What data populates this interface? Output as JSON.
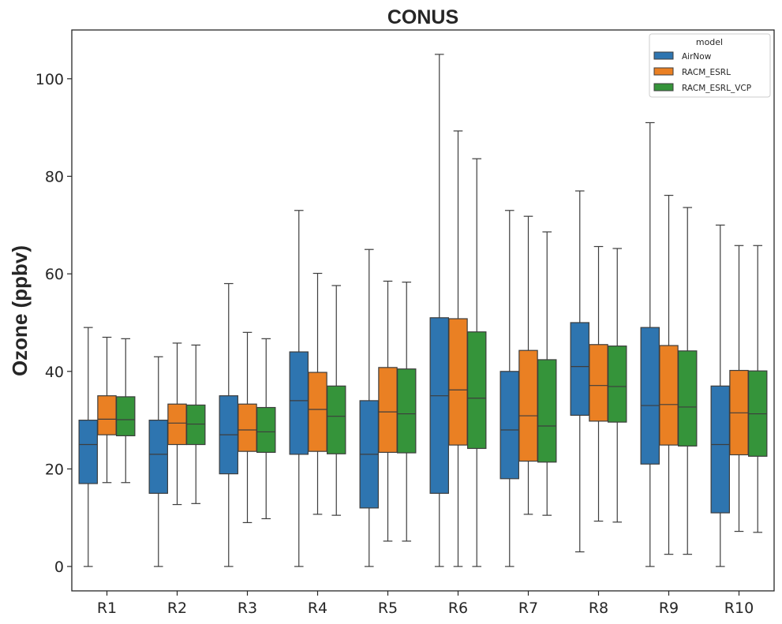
{
  "chart_data": {
    "type": "boxplot",
    "title": "CONUS",
    "xlabel": "",
    "ylabel": "Ozone (ppbv)",
    "ylim": [
      -5,
      110
    ],
    "yticks": [
      0,
      20,
      40,
      60,
      80,
      100
    ],
    "grid": false,
    "legend": {
      "title": "model",
      "placement": "top-right"
    },
    "categories": [
      "R1",
      "R2",
      "R3",
      "R4",
      "R5",
      "R6",
      "R7",
      "R8",
      "R9",
      "R10"
    ],
    "series": [
      {
        "name": "AirNow",
        "color": "#2e75b0",
        "boxes": [
          {
            "whislo": 0,
            "q1": 17,
            "med": 25,
            "q3": 30,
            "whishi": 49
          },
          {
            "whislo": 0,
            "q1": 15,
            "med": 23,
            "q3": 30,
            "whishi": 43
          },
          {
            "whislo": 0,
            "q1": 19,
            "med": 27,
            "q3": 35,
            "whishi": 58
          },
          {
            "whislo": 0,
            "q1": 23,
            "med": 34,
            "q3": 44,
            "whishi": 73
          },
          {
            "whislo": 0,
            "q1": 12,
            "med": 23,
            "q3": 34,
            "whishi": 65
          },
          {
            "whislo": 0,
            "q1": 15,
            "med": 35,
            "q3": 51,
            "whishi": 105
          },
          {
            "whislo": 0,
            "q1": 18,
            "med": 28,
            "q3": 40,
            "whishi": 73
          },
          {
            "whislo": 3,
            "q1": 31,
            "med": 41,
            "q3": 50,
            "whishi": 77
          },
          {
            "whislo": 0,
            "q1": 21,
            "med": 33,
            "q3": 49,
            "whishi": 91
          },
          {
            "whislo": 0,
            "q1": 11,
            "med": 25,
            "q3": 37,
            "whishi": 70
          }
        ]
      },
      {
        "name": "RACM_ESRL",
        "color": "#ea8023",
        "boxes": [
          {
            "whislo": 17.2,
            "q1": 27,
            "med": 30.2,
            "q3": 35,
            "whishi": 47
          },
          {
            "whislo": 12.7,
            "q1": 25,
            "med": 29.4,
            "q3": 33.3,
            "whishi": 45.8
          },
          {
            "whislo": 9,
            "q1": 23.6,
            "med": 28,
            "q3": 33.3,
            "whishi": 48
          },
          {
            "whislo": 10.7,
            "q1": 23.6,
            "med": 32.2,
            "q3": 39.8,
            "whishi": 60.1
          },
          {
            "whislo": 5.2,
            "q1": 23.4,
            "med": 31.7,
            "q3": 40.8,
            "whishi": 58.5
          },
          {
            "whislo": 0,
            "q1": 24.9,
            "med": 36.2,
            "q3": 50.8,
            "whishi": 89.3
          },
          {
            "whislo": 10.7,
            "q1": 21.6,
            "med": 30.9,
            "q3": 44.3,
            "whishi": 71.8
          },
          {
            "whislo": 9.3,
            "q1": 29.8,
            "med": 37.1,
            "q3": 45.5,
            "whishi": 65.6
          },
          {
            "whislo": 2.5,
            "q1": 24.9,
            "med": 33.2,
            "q3": 45.3,
            "whishi": 76.1
          },
          {
            "whislo": 7.2,
            "q1": 22.9,
            "med": 31.5,
            "q3": 40.2,
            "whishi": 65.8
          }
        ]
      },
      {
        "name": "RACM_ESRL_VCP",
        "color": "#35943a",
        "boxes": [
          {
            "whislo": 17.2,
            "q1": 26.8,
            "med": 30.1,
            "q3": 34.8,
            "whishi": 46.7
          },
          {
            "whislo": 12.9,
            "q1": 25,
            "med": 29.2,
            "q3": 33.1,
            "whishi": 45.4
          },
          {
            "whislo": 9.8,
            "q1": 23.4,
            "med": 27.6,
            "q3": 32.6,
            "whishi": 46.7
          },
          {
            "whislo": 10.5,
            "q1": 23.1,
            "med": 30.8,
            "q3": 37,
            "whishi": 57.6
          },
          {
            "whislo": 5.2,
            "q1": 23.3,
            "med": 31.3,
            "q3": 40.5,
            "whishi": 58.3
          },
          {
            "whislo": 0,
            "q1": 24.2,
            "med": 34.5,
            "q3": 48.1,
            "whishi": 83.6
          },
          {
            "whislo": 10.5,
            "q1": 21.4,
            "med": 28.8,
            "q3": 42.4,
            "whishi": 68.6
          },
          {
            "whislo": 9.1,
            "q1": 29.6,
            "med": 36.9,
            "q3": 45.2,
            "whishi": 65.2
          },
          {
            "whislo": 2.5,
            "q1": 24.7,
            "med": 32.7,
            "q3": 44.2,
            "whishi": 73.6
          },
          {
            "whislo": 7,
            "q1": 22.6,
            "med": 31.3,
            "q3": 40.1,
            "whishi": 65.8
          }
        ]
      }
    ]
  }
}
